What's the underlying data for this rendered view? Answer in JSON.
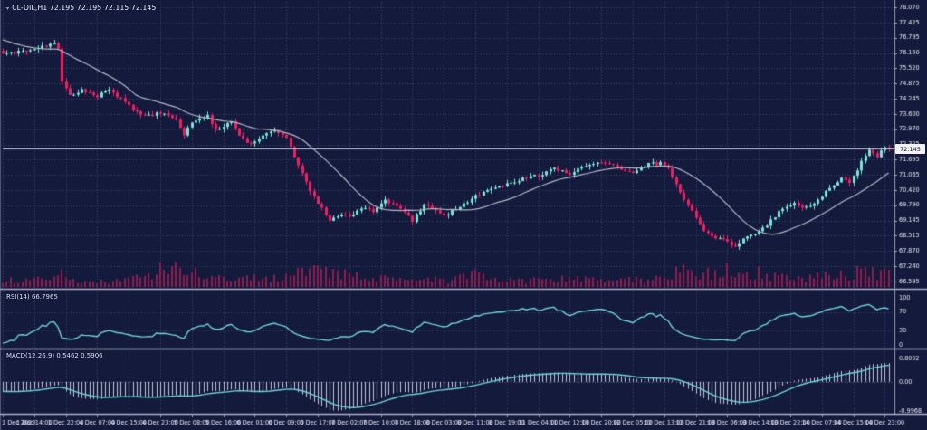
{
  "window": {
    "menu_arrow": "▾",
    "symbol_info": "CL-OIL,H1 72.195 72.195 72.115 72.145"
  },
  "colors": {
    "background": "#141a3c",
    "grid": "#39426f",
    "bull": "#7ce3da",
    "bear": "#f01f63",
    "volume": "#8d1c50",
    "ma_line": "#b4b6c6",
    "indicator_line": "#6fd2d8",
    "macd_histogram": "#c3c7da",
    "separator": "#aeb1c8",
    "axis_line": "#9b9eb8",
    "axis_text": "#e9ebf5",
    "current_price_line": "#c7c9de",
    "window_border": "#565a7a"
  },
  "chart_data": {
    "type": "candlestick",
    "symbol": "CL-OIL",
    "timeframe": "H1",
    "title": "CL-OIL,H1 72.195 72.195 72.115 72.145",
    "ohlc": {
      "open": 72.195,
      "high": 72.195,
      "low": 72.115,
      "close": 72.145
    },
    "current_price_label": "72.145",
    "price_axis_labels": [
      "78.070",
      "77.425",
      "76.795",
      "76.150",
      "75.520",
      "74.875",
      "74.245",
      "73.600",
      "72.970",
      "72.325",
      "71.695",
      "71.065",
      "70.420",
      "69.790",
      "69.145",
      "68.515",
      "67.870",
      "67.240",
      "66.595"
    ],
    "price_range_displayed": [
      66.595,
      78.07
    ],
    "time_axis_labels": [
      "1 Dec 2023",
      "1 Dec 14:00",
      "1 Dec 22:00",
      "4 Dec 07:00",
      "4 Dec 15:00",
      "4 Dec 23:00",
      "5 Dec 08:00",
      "5 Dec 16:00",
      "6 Dec 01:00",
      "6 Dec 09:00",
      "6 Dec 17:00",
      "7 Dec 02:00",
      "7 Dec 10:00",
      "7 Dec 18:00",
      "8 Dec 03:00",
      "8 Dec 11:00",
      "8 Dec 19:00",
      "11 Dec 04:00",
      "11 Dec 12:00",
      "11 Dec 20:00",
      "12 Dec 05:00",
      "12 Dec 13:00",
      "12 Dec 21:00",
      "13 Dec 06:00",
      "13 Dec 14:00",
      "13 Dec 22:00",
      "14 Dec 07:00",
      "14 Dec 15:00",
      "14 Dec 23:00"
    ],
    "candles_per_time_tick": 8,
    "price_path_anchors": [
      [
        0,
        76.1
      ],
      [
        5,
        76.22
      ],
      [
        9,
        76.35
      ],
      [
        13,
        76.55
      ],
      [
        14,
        76.3
      ],
      [
        15,
        74.9
      ],
      [
        17,
        74.4
      ],
      [
        20,
        74.6
      ],
      [
        24,
        74.35
      ],
      [
        27,
        74.65
      ],
      [
        32,
        73.95
      ],
      [
        36,
        73.5
      ],
      [
        40,
        73.65
      ],
      [
        44,
        73.4
      ],
      [
        46,
        72.75
      ],
      [
        48,
        73.3
      ],
      [
        52,
        73.55
      ],
      [
        54,
        72.95
      ],
      [
        56,
        73.1
      ],
      [
        58,
        73.3
      ],
      [
        60,
        72.65
      ],
      [
        63,
        72.35
      ],
      [
        66,
        72.7
      ],
      [
        69,
        72.9
      ],
      [
        72,
        72.6
      ],
      [
        75,
        71.5
      ],
      [
        78,
        70.4
      ],
      [
        80,
        69.85
      ],
      [
        83,
        69.2
      ],
      [
        86,
        69.45
      ],
      [
        88,
        69.3
      ],
      [
        91,
        69.65
      ],
      [
        94,
        69.55
      ],
      [
        97,
        70.0
      ],
      [
        100,
        69.7
      ],
      [
        103,
        69.4
      ],
      [
        104,
        69.15
      ],
      [
        107,
        69.8
      ],
      [
        110,
        69.6
      ],
      [
        112,
        69.35
      ],
      [
        116,
        69.75
      ],
      [
        120,
        70.15
      ],
      [
        124,
        70.45
      ],
      [
        128,
        70.65
      ],
      [
        132,
        70.9
      ],
      [
        136,
        71.05
      ],
      [
        140,
        71.3
      ],
      [
        144,
        71.1
      ],
      [
        148,
        71.45
      ],
      [
        152,
        71.6
      ],
      [
        156,
        71.35
      ],
      [
        160,
        71.2
      ],
      [
        164,
        71.5
      ],
      [
        167,
        71.55
      ],
      [
        169,
        71.3
      ],
      [
        172,
        70.3
      ],
      [
        175,
        69.6
      ],
      [
        178,
        68.75
      ],
      [
        181,
        68.45
      ],
      [
        184,
        68.25
      ],
      [
        186,
        68.05
      ],
      [
        189,
        68.5
      ],
      [
        192,
        68.65
      ],
      [
        195,
        69.15
      ],
      [
        198,
        69.65
      ],
      [
        201,
        69.85
      ],
      [
        204,
        69.7
      ],
      [
        207,
        70.0
      ],
      [
        210,
        70.55
      ],
      [
        213,
        70.9
      ],
      [
        215,
        70.7
      ],
      [
        218,
        71.6
      ],
      [
        220,
        72.05
      ],
      [
        222,
        71.85
      ],
      [
        224,
        72.2
      ],
      [
        225,
        72.145
      ]
    ],
    "volume_envelope_anchors": [
      [
        0,
        0.3
      ],
      [
        8,
        0.25
      ],
      [
        14,
        0.6
      ],
      [
        16,
        0.5
      ],
      [
        20,
        0.2
      ],
      [
        28,
        0.25
      ],
      [
        36,
        0.4
      ],
      [
        44,
        1.0
      ],
      [
        47,
        0.75
      ],
      [
        52,
        0.35
      ],
      [
        56,
        0.4
      ],
      [
        60,
        0.3
      ],
      [
        64,
        0.45
      ],
      [
        68,
        0.3
      ],
      [
        74,
        0.55
      ],
      [
        80,
        0.65
      ],
      [
        84,
        0.5
      ],
      [
        88,
        0.55
      ],
      [
        92,
        0.3
      ],
      [
        96,
        0.35
      ],
      [
        102,
        0.25
      ],
      [
        108,
        0.3
      ],
      [
        114,
        0.25
      ],
      [
        120,
        0.5
      ],
      [
        126,
        0.3
      ],
      [
        132,
        0.25
      ],
      [
        138,
        0.3
      ],
      [
        144,
        0.3
      ],
      [
        150,
        0.35
      ],
      [
        156,
        0.25
      ],
      [
        160,
        0.35
      ],
      [
        164,
        0.3
      ],
      [
        168,
        0.5
      ],
      [
        172,
        0.65
      ],
      [
        176,
        0.6
      ],
      [
        180,
        0.55
      ],
      [
        184,
        0.8
      ],
      [
        188,
        0.5
      ],
      [
        192,
        0.55
      ],
      [
        196,
        0.4
      ],
      [
        200,
        0.45
      ],
      [
        204,
        0.35
      ],
      [
        208,
        0.5
      ],
      [
        212,
        0.4
      ],
      [
        216,
        0.55
      ],
      [
        219,
        0.8
      ],
      [
        222,
        0.6
      ],
      [
        225,
        0.5
      ]
    ],
    "indicators": {
      "ma": {
        "type": "SMA",
        "period": 20
      },
      "rsi": {
        "label": "RSI(14) 66.7965",
        "period": 14,
        "last_value": 66.7965,
        "levels": [
          70,
          30
        ],
        "range": [
          0,
          100
        ],
        "axis_labels": [
          "100",
          "70",
          "30",
          "0"
        ]
      },
      "macd": {
        "label": "MACD(12,26,9) 0.5462 0.5906",
        "fast": 12,
        "slow": 26,
        "signal": 9,
        "last_macd": 0.5462,
        "last_signal": 0.5906,
        "range": [
          -0.9968,
          0.8002
        ],
        "axis_labels": [
          "0.8002",
          "0.00",
          "-0.9968"
        ]
      }
    }
  }
}
